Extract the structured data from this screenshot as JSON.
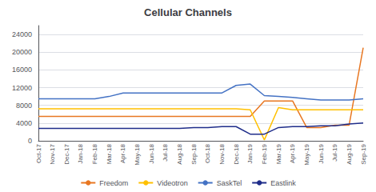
{
  "chart_data": {
    "type": "line",
    "title": "Cellular Channels",
    "categories": [
      "Oct-17",
      "Nov-17",
      "Dec-17",
      "Jan-18",
      "Feb-18",
      "Mar-18",
      "Apr-18",
      "May-18",
      "Jun-18",
      "Jul-18",
      "Aug-18",
      "Sep-18",
      "Oct-18",
      "Nov-18",
      "Dec-18",
      "Jan-19",
      "Feb-19",
      "Mar-19",
      "Apr-19",
      "May-19",
      "Jun-19",
      "Jul-19",
      "Aug-19",
      "Sep-19"
    ],
    "series": [
      {
        "name": "Freedom",
        "color": "#E87722",
        "values": [
          5500,
          5500,
          5500,
          5500,
          5500,
          5500,
          5500,
          5500,
          5500,
          5500,
          5500,
          5500,
          5500,
          5500,
          5500,
          5500,
          9000,
          9000,
          9000,
          3000,
          3000,
          3500,
          3500,
          21000
        ]
      },
      {
        "name": "Videotron",
        "color": "#FFC000",
        "values": [
          7200,
          7200,
          7200,
          7200,
          7200,
          7200,
          7200,
          7200,
          7200,
          7200,
          7200,
          7200,
          7200,
          7200,
          7200,
          7000,
          200,
          7500,
          7000,
          7000,
          7000,
          7000,
          7000,
          7000
        ]
      },
      {
        "name": "SaskTel",
        "color": "#4472C4",
        "values": [
          9500,
          9500,
          9500,
          9500,
          9500,
          10000,
          10800,
          10800,
          10800,
          10800,
          10800,
          10800,
          10800,
          10800,
          12500,
          12800,
          10200,
          10000,
          9800,
          9500,
          9200,
          9200,
          9200,
          9500
        ]
      },
      {
        "name": "Eastlink",
        "color": "#1F2D8A",
        "values": [
          2800,
          2800,
          2800,
          2800,
          2800,
          2800,
          2800,
          2800,
          2800,
          2800,
          2800,
          3000,
          3000,
          3200,
          3200,
          1500,
          1500,
          3000,
          3200,
          3200,
          3400,
          3400,
          3800,
          4000
        ]
      }
    ],
    "ylim": [
      0,
      26000
    ],
    "yticks": [
      0,
      4000,
      8000,
      12000,
      16000,
      20000,
      24000
    ],
    "grid": true,
    "legend": "bottom"
  }
}
